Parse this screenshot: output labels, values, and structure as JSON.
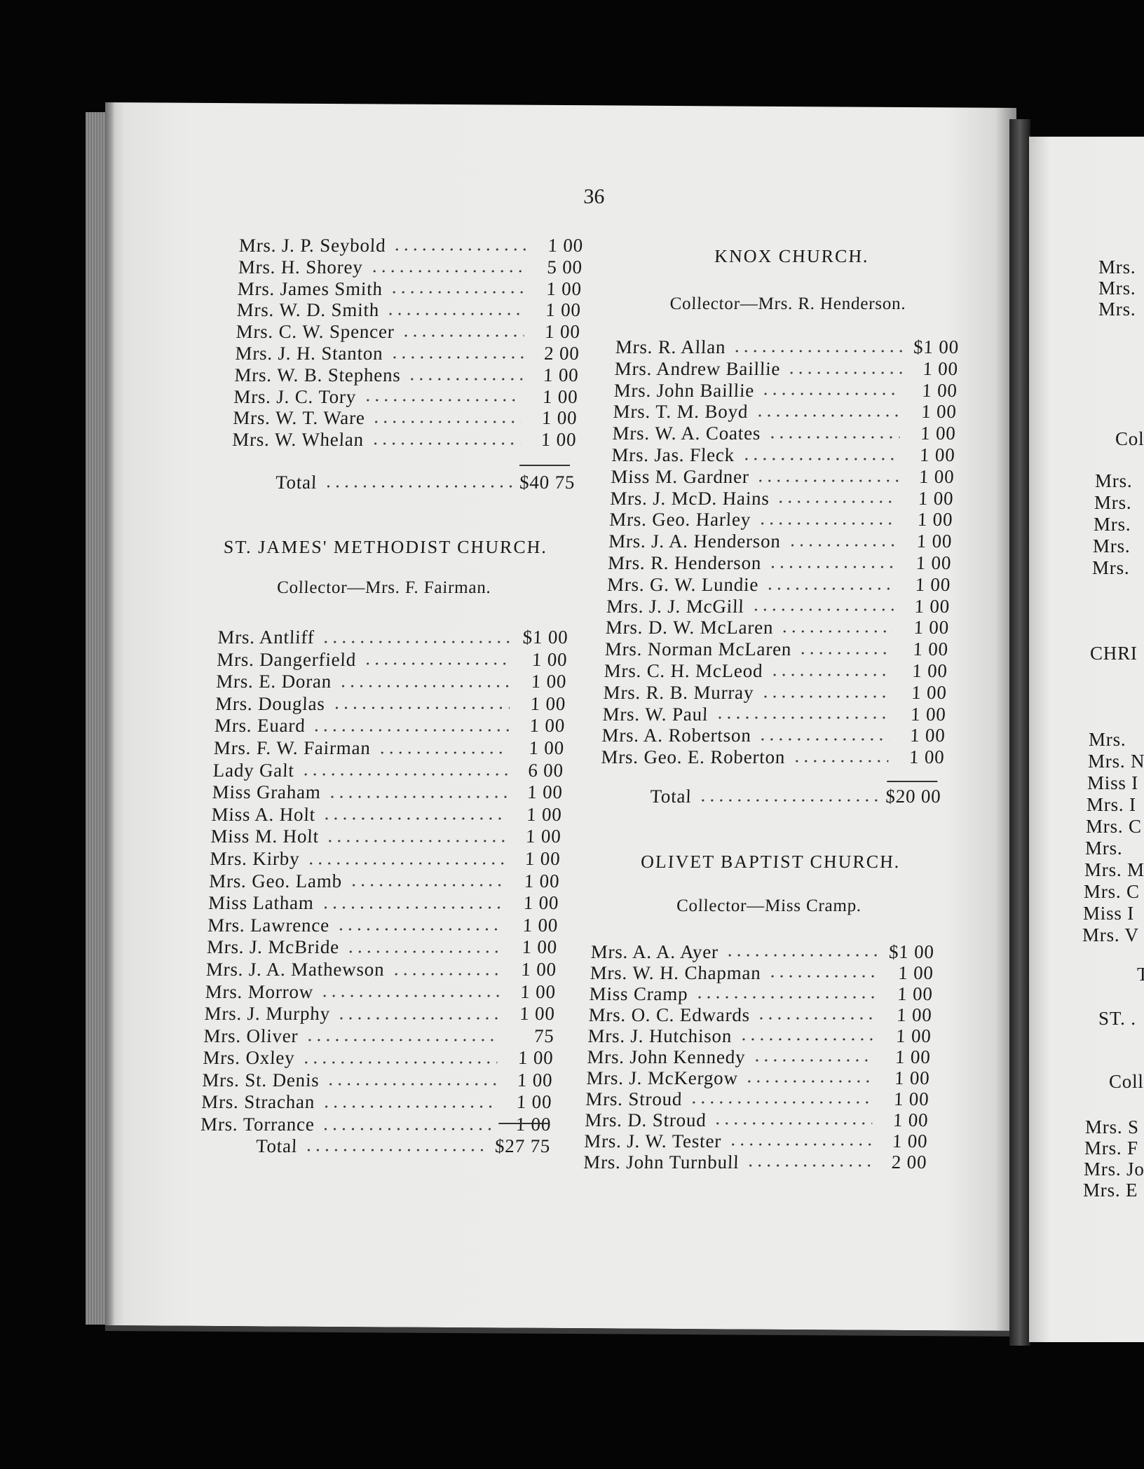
{
  "page_number": "36",
  "left": {
    "continued_entries": [
      {
        "name": "Mrs. J. P. Seybold",
        "amount": "1 00"
      },
      {
        "name": "Mrs. H. Shorey",
        "amount": "5 00"
      },
      {
        "name": "Mrs. James Smith",
        "amount": "1 00"
      },
      {
        "name": "Mrs. W. D. Smith",
        "amount": "1 00"
      },
      {
        "name": "Mrs. C. W. Spencer",
        "amount": "1 00"
      },
      {
        "name": "Mrs. J. H. Stanton",
        "amount": "2 00"
      },
      {
        "name": "Mrs. W. B. Stephens",
        "amount": "1 00"
      },
      {
        "name": "Mrs. J. C. Tory",
        "amount": "1 00"
      },
      {
        "name": "Mrs. W. T. Ware",
        "amount": "1 00"
      },
      {
        "name": "Mrs. W. Whelan",
        "amount": "1 00"
      }
    ],
    "continued_total": {
      "label": "Total",
      "amount": "$40 75"
    },
    "st_james": {
      "heading": "ST. JAMES' METHODIST CHURCH.",
      "collector": "Collector—Mrs. F. Fairman.",
      "entries": [
        {
          "name": "Mrs. Antliff",
          "amount": "$1 00"
        },
        {
          "name": "Mrs. Dangerfield",
          "amount": "1 00"
        },
        {
          "name": "Mrs. E. Doran",
          "amount": "1 00"
        },
        {
          "name": "Mrs. Douglas",
          "amount": "1 00"
        },
        {
          "name": "Mrs. Euard",
          "amount": "1 00"
        },
        {
          "name": "Mrs. F. W. Fairman",
          "amount": "1 00"
        },
        {
          "name": "Lady Galt",
          "amount": "6 00"
        },
        {
          "name": "Miss Graham",
          "amount": "1 00"
        },
        {
          "name": "Miss A. Holt",
          "amount": "1 00"
        },
        {
          "name": "Miss M. Holt",
          "amount": "1 00"
        },
        {
          "name": "Mrs. Kirby",
          "amount": "1 00"
        },
        {
          "name": "Mrs. Geo. Lamb",
          "amount": "1 00"
        },
        {
          "name": "Miss Latham",
          "amount": "1 00"
        },
        {
          "name": "Mrs. Lawrence",
          "amount": "1 00"
        },
        {
          "name": "Mrs. J. McBride",
          "amount": "1 00"
        },
        {
          "name": "Mrs. J. A. Mathewson",
          "amount": "1 00"
        },
        {
          "name": "Mrs. Morrow",
          "amount": "1 00"
        },
        {
          "name": "Mrs. J. Murphy",
          "amount": "1 00"
        },
        {
          "name": "Mrs. Oliver",
          "amount": "75"
        },
        {
          "name": "Mrs. Oxley",
          "amount": "1 00"
        },
        {
          "name": "Mrs. St. Denis",
          "amount": "1 00"
        },
        {
          "name": "Mrs. Strachan",
          "amount": "1 00"
        },
        {
          "name": "Mrs. Torrance",
          "amount": "1 00"
        }
      ],
      "total": {
        "label": "Total",
        "amount": "$27 75"
      }
    }
  },
  "right": {
    "knox": {
      "heading": "KNOX CHURCH.",
      "collector": "Collector—Mrs. R. Henderson.",
      "entries": [
        {
          "name": "Mrs. R. Allan",
          "amount": "$1 00"
        },
        {
          "name": "Mrs. Andrew Baillie",
          "amount": "1 00"
        },
        {
          "name": "Mrs. John Baillie",
          "amount": "1 00"
        },
        {
          "name": "Mrs. T. M. Boyd",
          "amount": "1 00"
        },
        {
          "name": "Mrs. W. A. Coates",
          "amount": "1 00"
        },
        {
          "name": "Mrs. Jas. Fleck",
          "amount": "1 00"
        },
        {
          "name": "Miss M. Gardner",
          "amount": "1 00"
        },
        {
          "name": "Mrs. J. McD. Hains",
          "amount": "1 00"
        },
        {
          "name": "Mrs. Geo. Harley",
          "amount": "1 00"
        },
        {
          "name": "Mrs. J. A. Henderson",
          "amount": "1 00"
        },
        {
          "name": "Mrs. R. Henderson",
          "amount": "1 00"
        },
        {
          "name": "Mrs. G. W. Lundie",
          "amount": "1 00"
        },
        {
          "name": "Mrs. J. J. McGill",
          "amount": "1 00"
        },
        {
          "name": "Mrs. D. W. McLaren",
          "amount": "1 00"
        },
        {
          "name": "Mrs. Norman McLaren",
          "amount": "1 00"
        },
        {
          "name": "Mrs. C. H. McLeod",
          "amount": "1 00"
        },
        {
          "name": "Mrs. R. B. Murray",
          "amount": "1 00"
        },
        {
          "name": "Mrs. W. Paul",
          "amount": "1 00"
        },
        {
          "name": "Mrs. A. Robertson",
          "amount": "1 00"
        },
        {
          "name": "Mrs. Geo. E. Roberton",
          "amount": "1 00"
        }
      ],
      "total": {
        "label": "Total",
        "amount": "$20 00"
      }
    },
    "olivet": {
      "heading": "OLIVET BAPTIST CHURCH.",
      "collector": "Collector—Miss Cramp.",
      "entries": [
        {
          "name": "Mrs. A. A. Ayer",
          "amount": "$1 00"
        },
        {
          "name": "Mrs. W. H. Chapman",
          "amount": "1 00"
        },
        {
          "name": "Miss Cramp",
          "amount": "1 00"
        },
        {
          "name": "Mrs. O. C. Edwards",
          "amount": "1 00"
        },
        {
          "name": "Mrs. J. Hutchison",
          "amount": "1 00"
        },
        {
          "name": "Mrs. John Kennedy",
          "amount": "1 00"
        },
        {
          "name": "Mrs. J. McKergow",
          "amount": "1 00"
        },
        {
          "name": "Mrs. Stroud",
          "amount": "1 00"
        },
        {
          "name": "Mrs. D. Stroud",
          "amount": "1 00"
        },
        {
          "name": "Mrs. J. W. Tester",
          "amount": "1 00"
        },
        {
          "name": "Mrs. John Turnbull",
          "amount": "2 00"
        }
      ]
    }
  },
  "facing_page_fragments": {
    "top": [
      "Mrs.",
      "Mrs.",
      "Mrs."
    ],
    "collector1": "Col",
    "list1": [
      "Mrs.",
      "Mrs.",
      "Mrs.",
      "Mrs.",
      "Mrs."
    ],
    "heading": "CHRI",
    "list2": [
      "Mrs.",
      "Mrs. N",
      "Miss I",
      "Mrs. I",
      "Mrs. C",
      "Mrs.",
      "Mrs. M",
      "Mrs. C",
      "Miss I",
      "Mrs. V"
    ],
    "total": "T",
    "heading2": "ST. .",
    "collector2": "Coll",
    "list3": [
      "Mrs. S",
      "Mrs. F",
      "Mrs. Jo",
      "Mrs. E"
    ]
  }
}
